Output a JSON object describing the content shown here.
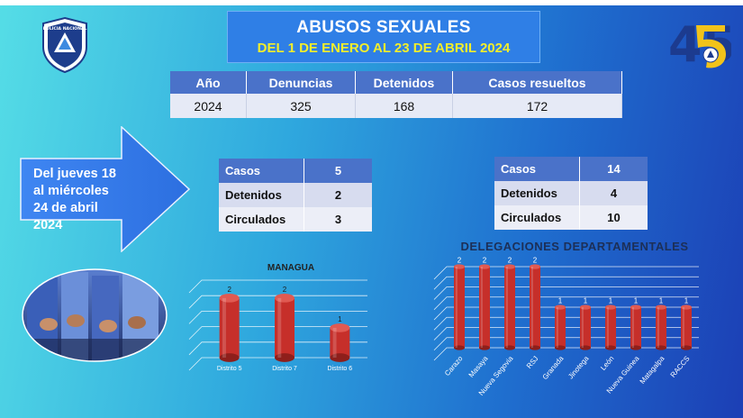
{
  "header": {
    "title": "ABUSOS SEXUALES",
    "subtitle": "DEL 1 DE ENERO AL 23 DE ABRIL 2024"
  },
  "logos": {
    "left_icon": "police-badge-icon",
    "left_text": "POLICIA NACIONAL",
    "right_icon": "anniversary-45-icon",
    "right_text": "45"
  },
  "summary_table": {
    "headers": [
      "Año",
      "Denuncias",
      "Detenidos",
      "Casos resueltos"
    ],
    "row": [
      "2024",
      "325",
      "168",
      "172"
    ]
  },
  "week_banner": "Del jueves 18 al miércoles 24 de abril 2024",
  "table_managua": {
    "rows": [
      {
        "label": "Casos",
        "value": "5"
      },
      {
        "label": "Detenidos",
        "value": "2"
      },
      {
        "label": "Circulados",
        "value": "3"
      }
    ]
  },
  "table_departamentos": {
    "rows": [
      {
        "label": "Casos",
        "value": "14"
      },
      {
        "label": "Detenidos",
        "value": "4"
      },
      {
        "label": "Circulados",
        "value": "10"
      }
    ]
  },
  "colors": {
    "bar": "#c62f2a",
    "header_blue": "#4a72c9",
    "title_yellow": "#f2ee2b"
  },
  "chart_data": [
    {
      "type": "bar",
      "title": "MANAGUA",
      "categories": [
        "Distrito 5",
        "Distrito 7",
        "Distrito 6"
      ],
      "values": [
        2,
        2,
        1
      ],
      "ylim": [
        0,
        2.6
      ],
      "grid": true
    },
    {
      "type": "bar",
      "title": "DELEGACIONES DEPARTAMENTALES",
      "categories": [
        "Carazo",
        "Masaya",
        "Nueva Segovia",
        "RSJ",
        "Granada",
        "Jinotega",
        "León",
        "Nueva Guinea",
        "Matagalpa",
        "RACCS"
      ],
      "values": [
        2,
        2,
        2,
        2,
        1,
        1,
        1,
        1,
        1,
        1
      ],
      "ylim": [
        0,
        2
      ],
      "grid": true
    }
  ]
}
